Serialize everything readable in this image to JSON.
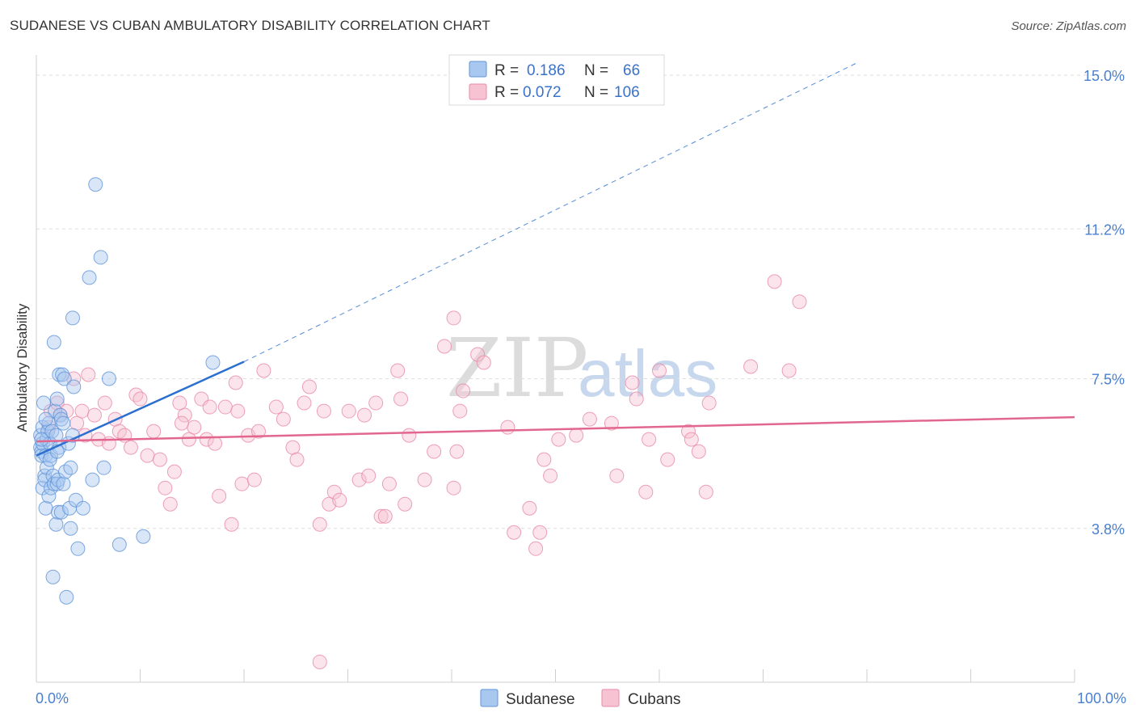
{
  "title": "SUDANESE VS CUBAN AMBULATORY DISABILITY CORRELATION CHART",
  "source": "Source: ZipAtlas.com",
  "watermark": {
    "zip": "ZIP",
    "atlas": "atlas"
  },
  "colors": {
    "sudanese_fill": "#a9c8f0",
    "sudanese_stroke": "#5f93d8",
    "sudanese_line": "#2b6fcf",
    "cubans_fill": "#f7c3d3",
    "cubans_stroke": "#e88aa8",
    "cubans_line": "#e2678f",
    "tick_text": "#4a7fd0",
    "grid": "#dddddd"
  },
  "legend": {
    "rows": [
      {
        "series": "Sudanese",
        "r_label": "R =",
        "r_value": "0.186",
        "n_label": "N =",
        "n_value": "66"
      },
      {
        "series": "Cubans",
        "r_label": "R =",
        "r_value": "0.072",
        "n_label": "N =",
        "n_value": "106"
      }
    ]
  },
  "chart_data": {
    "type": "scatter",
    "title": "SUDANESE VS CUBAN AMBULATORY DISABILITY CORRELATION CHART",
    "xlabel": "",
    "ylabel": "Ambulatory Disability",
    "xlim": [
      0,
      100
    ],
    "ylim": [
      0,
      15.5
    ],
    "x_tick_labels": [
      "0.0%",
      "100.0%"
    ],
    "y_ticks": [
      3.8,
      7.5,
      11.2,
      15.0
    ],
    "y_tick_labels": [
      "3.8%",
      "7.5%",
      "11.2%",
      "15.0%"
    ],
    "grid": "horizontal dashed",
    "legend_position": "top-center",
    "series": [
      {
        "name": "Sudanese",
        "trend": {
          "x0": 0,
          "y0": 5.6,
          "x1": 20,
          "y1": 7.92,
          "dashed_to_x": 79,
          "dashed_to_y": 15.3
        },
        "points": [
          [
            0.4,
            6.1
          ],
          [
            0.4,
            5.8
          ],
          [
            0.5,
            5.7
          ],
          [
            0.5,
            5.6
          ],
          [
            0.6,
            6.3
          ],
          [
            0.6,
            5.9
          ],
          [
            0.6,
            4.8
          ],
          [
            0.7,
            6.9
          ],
          [
            0.8,
            5.1
          ],
          [
            0.8,
            5.0
          ],
          [
            0.9,
            5.6
          ],
          [
            0.9,
            4.3
          ],
          [
            1.0,
            6.0
          ],
          [
            1.0,
            5.3
          ],
          [
            1.1,
            6.2
          ],
          [
            1.2,
            4.6
          ],
          [
            1.2,
            6.4
          ],
          [
            1.3,
            5.9
          ],
          [
            1.4,
            5.6
          ],
          [
            1.4,
            4.8
          ],
          [
            1.5,
            6.2
          ],
          [
            1.6,
            5.1
          ],
          [
            1.6,
            2.6
          ],
          [
            1.7,
            8.4
          ],
          [
            1.7,
            4.9
          ],
          [
            1.8,
            6.7
          ],
          [
            1.9,
            3.9
          ],
          [
            1.9,
            6.1
          ],
          [
            2.0,
            7.0
          ],
          [
            2.0,
            4.9
          ],
          [
            2.1,
            4.2
          ],
          [
            2.1,
            5.0
          ],
          [
            2.2,
            7.6
          ],
          [
            2.2,
            5.8
          ],
          [
            2.3,
            6.6
          ],
          [
            2.4,
            4.2
          ],
          [
            2.4,
            6.5
          ],
          [
            2.5,
            7.6
          ],
          [
            2.6,
            6.4
          ],
          [
            2.6,
            4.9
          ],
          [
            2.7,
            7.5
          ],
          [
            2.8,
            5.2
          ],
          [
            2.9,
            2.1
          ],
          [
            3.1,
            5.9
          ],
          [
            3.2,
            4.3
          ],
          [
            3.3,
            5.3
          ],
          [
            3.3,
            3.8
          ],
          [
            3.5,
            9.0
          ],
          [
            3.5,
            6.1
          ],
          [
            3.6,
            7.3
          ],
          [
            3.8,
            4.5
          ],
          [
            4.0,
            3.3
          ],
          [
            4.5,
            4.3
          ],
          [
            5.1,
            10.0
          ],
          [
            5.4,
            5.0
          ],
          [
            5.7,
            12.3
          ],
          [
            6.2,
            10.5
          ],
          [
            6.5,
            5.3
          ],
          [
            7.0,
            7.5
          ],
          [
            8.0,
            3.4
          ],
          [
            10.3,
            3.6
          ],
          [
            17.0,
            7.9
          ],
          [
            0.5,
            6.0
          ],
          [
            1.3,
            5.5
          ],
          [
            2.0,
            5.7
          ],
          [
            0.9,
            6.5
          ]
        ]
      },
      {
        "name": "Cubans",
        "trend": {
          "x0": 0,
          "y0": 5.95,
          "x1": 100,
          "y1": 6.55
        },
        "points": [
          [
            1.2,
            6.3
          ],
          [
            1.4,
            6.7
          ],
          [
            2.0,
            6.9
          ],
          [
            2.3,
            6.6
          ],
          [
            2.9,
            6.7
          ],
          [
            3.6,
            7.5
          ],
          [
            3.9,
            6.4
          ],
          [
            4.4,
            6.7
          ],
          [
            4.7,
            6.1
          ],
          [
            5.0,
            7.6
          ],
          [
            5.6,
            6.6
          ],
          [
            6.0,
            6.0
          ],
          [
            6.6,
            6.9
          ],
          [
            7.0,
            5.9
          ],
          [
            7.6,
            6.5
          ],
          [
            8.0,
            6.2
          ],
          [
            8.5,
            6.1
          ],
          [
            9.1,
            5.8
          ],
          [
            9.6,
            7.1
          ],
          [
            10.0,
            7.0
          ],
          [
            10.7,
            5.6
          ],
          [
            11.3,
            6.2
          ],
          [
            11.9,
            5.5
          ],
          [
            12.4,
            4.8
          ],
          [
            12.9,
            4.4
          ],
          [
            13.3,
            5.2
          ],
          [
            13.8,
            6.9
          ],
          [
            14.3,
            6.6
          ],
          [
            14.7,
            6.0
          ],
          [
            15.2,
            6.3
          ],
          [
            15.9,
            7.0
          ],
          [
            16.4,
            6.0
          ],
          [
            16.7,
            6.8
          ],
          [
            17.2,
            5.9
          ],
          [
            17.6,
            4.6
          ],
          [
            18.2,
            6.8
          ],
          [
            18.8,
            3.9
          ],
          [
            19.2,
            7.4
          ],
          [
            19.4,
            6.7
          ],
          [
            19.8,
            4.9
          ],
          [
            20.4,
            6.1
          ],
          [
            21.0,
            5.0
          ],
          [
            21.4,
            6.2
          ],
          [
            21.9,
            7.7
          ],
          [
            23.1,
            6.8
          ],
          [
            23.8,
            6.5
          ],
          [
            24.7,
            5.8
          ],
          [
            25.1,
            5.5
          ],
          [
            25.8,
            6.9
          ],
          [
            26.3,
            7.3
          ],
          [
            27.3,
            3.9
          ],
          [
            27.7,
            6.7
          ],
          [
            28.2,
            4.4
          ],
          [
            28.7,
            4.7
          ],
          [
            29.2,
            4.5
          ],
          [
            30.1,
            6.7
          ],
          [
            31.1,
            5.0
          ],
          [
            31.6,
            6.6
          ],
          [
            32.0,
            5.1
          ],
          [
            32.7,
            6.9
          ],
          [
            33.2,
            4.1
          ],
          [
            33.6,
            4.1
          ],
          [
            34.0,
            4.9
          ],
          [
            35.1,
            7.0
          ],
          [
            35.5,
            4.4
          ],
          [
            35.9,
            6.1
          ],
          [
            37.4,
            5.0
          ],
          [
            38.3,
            5.7
          ],
          [
            39.3,
            8.3
          ],
          [
            40.2,
            4.8
          ],
          [
            40.5,
            5.7
          ],
          [
            40.8,
            6.7
          ],
          [
            41.1,
            7.2
          ],
          [
            42.5,
            8.1
          ],
          [
            43.1,
            7.9
          ],
          [
            45.4,
            6.3
          ],
          [
            46.0,
            3.7
          ],
          [
            47.5,
            4.3
          ],
          [
            48.1,
            3.3
          ],
          [
            48.5,
            3.7
          ],
          [
            48.9,
            5.5
          ],
          [
            49.5,
            5.1
          ],
          [
            50.3,
            6.0
          ],
          [
            52.0,
            6.1
          ],
          [
            53.3,
            6.5
          ],
          [
            55.4,
            6.4
          ],
          [
            55.9,
            5.1
          ],
          [
            57.4,
            7.4
          ],
          [
            57.8,
            7.0
          ],
          [
            58.7,
            4.7
          ],
          [
            59.0,
            6.0
          ],
          [
            60.0,
            7.7
          ],
          [
            60.8,
            5.5
          ],
          [
            62.8,
            6.2
          ],
          [
            63.1,
            6.0
          ],
          [
            63.8,
            5.7
          ],
          [
            64.5,
            4.7
          ],
          [
            64.8,
            6.9
          ],
          [
            68.8,
            7.8
          ],
          [
            71.1,
            9.9
          ],
          [
            72.5,
            7.7
          ],
          [
            73.5,
            9.4
          ],
          [
            40.2,
            9.0
          ],
          [
            27.3,
            0.5
          ],
          [
            34.8,
            7.7
          ],
          [
            14.0,
            6.4
          ]
        ]
      }
    ]
  }
}
